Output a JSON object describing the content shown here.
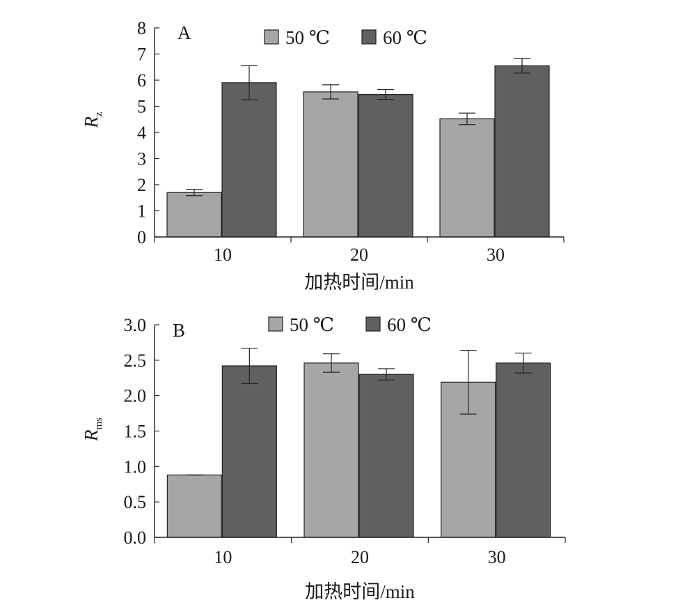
{
  "chart_data": [
    {
      "type": "bar",
      "panel_label": "A",
      "categories": [
        "10",
        "20",
        "30"
      ],
      "series": [
        {
          "name": "50 ℃",
          "color": "#a6a6a6",
          "values": [
            1.7,
            5.55,
            4.52
          ],
          "errors": [
            0.12,
            0.27,
            0.22
          ]
        },
        {
          "name": "60 ℃",
          "color": "#5f6062",
          "values": [
            5.9,
            5.45,
            6.55
          ],
          "errors": [
            0.65,
            0.19,
            0.28
          ]
        }
      ],
      "xlabel": "加热时间/min",
      "ylabel_main": "R",
      "ylabel_sub": "z",
      "ylim": [
        0,
        8
      ],
      "yticks": [
        "0",
        "1",
        "2",
        "3",
        "4",
        "5",
        "6",
        "7",
        "8"
      ],
      "legend_position": "top-center",
      "grid": false
    },
    {
      "type": "bar",
      "panel_label": "B",
      "categories": [
        "10",
        "20",
        "30"
      ],
      "series": [
        {
          "name": "50 ℃",
          "color": "#a6a6a6",
          "values": [
            0.88,
            2.46,
            2.19
          ],
          "errors": [
            0.0,
            0.13,
            0.45
          ]
        },
        {
          "name": "60 ℃",
          "color": "#5f6062",
          "values": [
            2.42,
            2.3,
            2.46
          ],
          "errors": [
            0.25,
            0.08,
            0.14
          ]
        }
      ],
      "xlabel": "加热时间/min",
      "ylabel_main": "R",
      "ylabel_sub": "ms",
      "ylim": [
        0,
        3
      ],
      "yticks": [
        "0.0",
        "0.5",
        "1.0",
        "1.5",
        "2.0",
        "2.5",
        "3.0"
      ],
      "legend_position": "top-center",
      "grid": false
    }
  ]
}
